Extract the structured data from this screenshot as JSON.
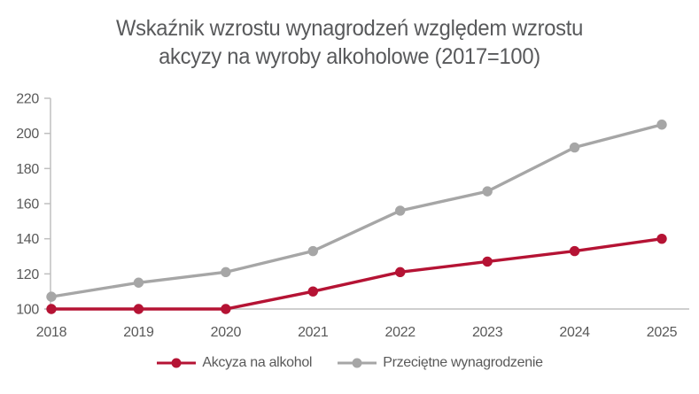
{
  "chart_data": {
    "type": "line",
    "title": "Wskaźnik wzrostu wynagrodzeń względem wzrostu\nakcyzy na wyroby alkoholowe  (2017=100)",
    "x": [
      "2018",
      "2019",
      "2020",
      "2021",
      "2022",
      "2023",
      "2024",
      "2025"
    ],
    "series": [
      {
        "name": "Akcyza na alkohol",
        "color": "#b51334",
        "values": [
          100,
          100,
          100,
          110,
          121,
          127,
          133,
          140
        ]
      },
      {
        "name": "Przeciętne wynagrodzenie",
        "color": "#a6a6a6",
        "values": [
          107,
          115,
          121,
          133,
          156,
          167,
          192,
          205
        ]
      }
    ],
    "ylim": [
      100,
      220
    ],
    "yticks": [
      100,
      120,
      140,
      160,
      180,
      200,
      220
    ],
    "xlabel": "",
    "ylabel": "",
    "grid": false,
    "baseline_value": 100,
    "legend_position": "bottom"
  },
  "colors": {
    "series_red": "#b51334",
    "series_gray": "#a6a6a6",
    "axis_line": "#bfbfbf",
    "tick_text": "#595959",
    "title_text": "#58595b",
    "background": "#ffffff"
  }
}
